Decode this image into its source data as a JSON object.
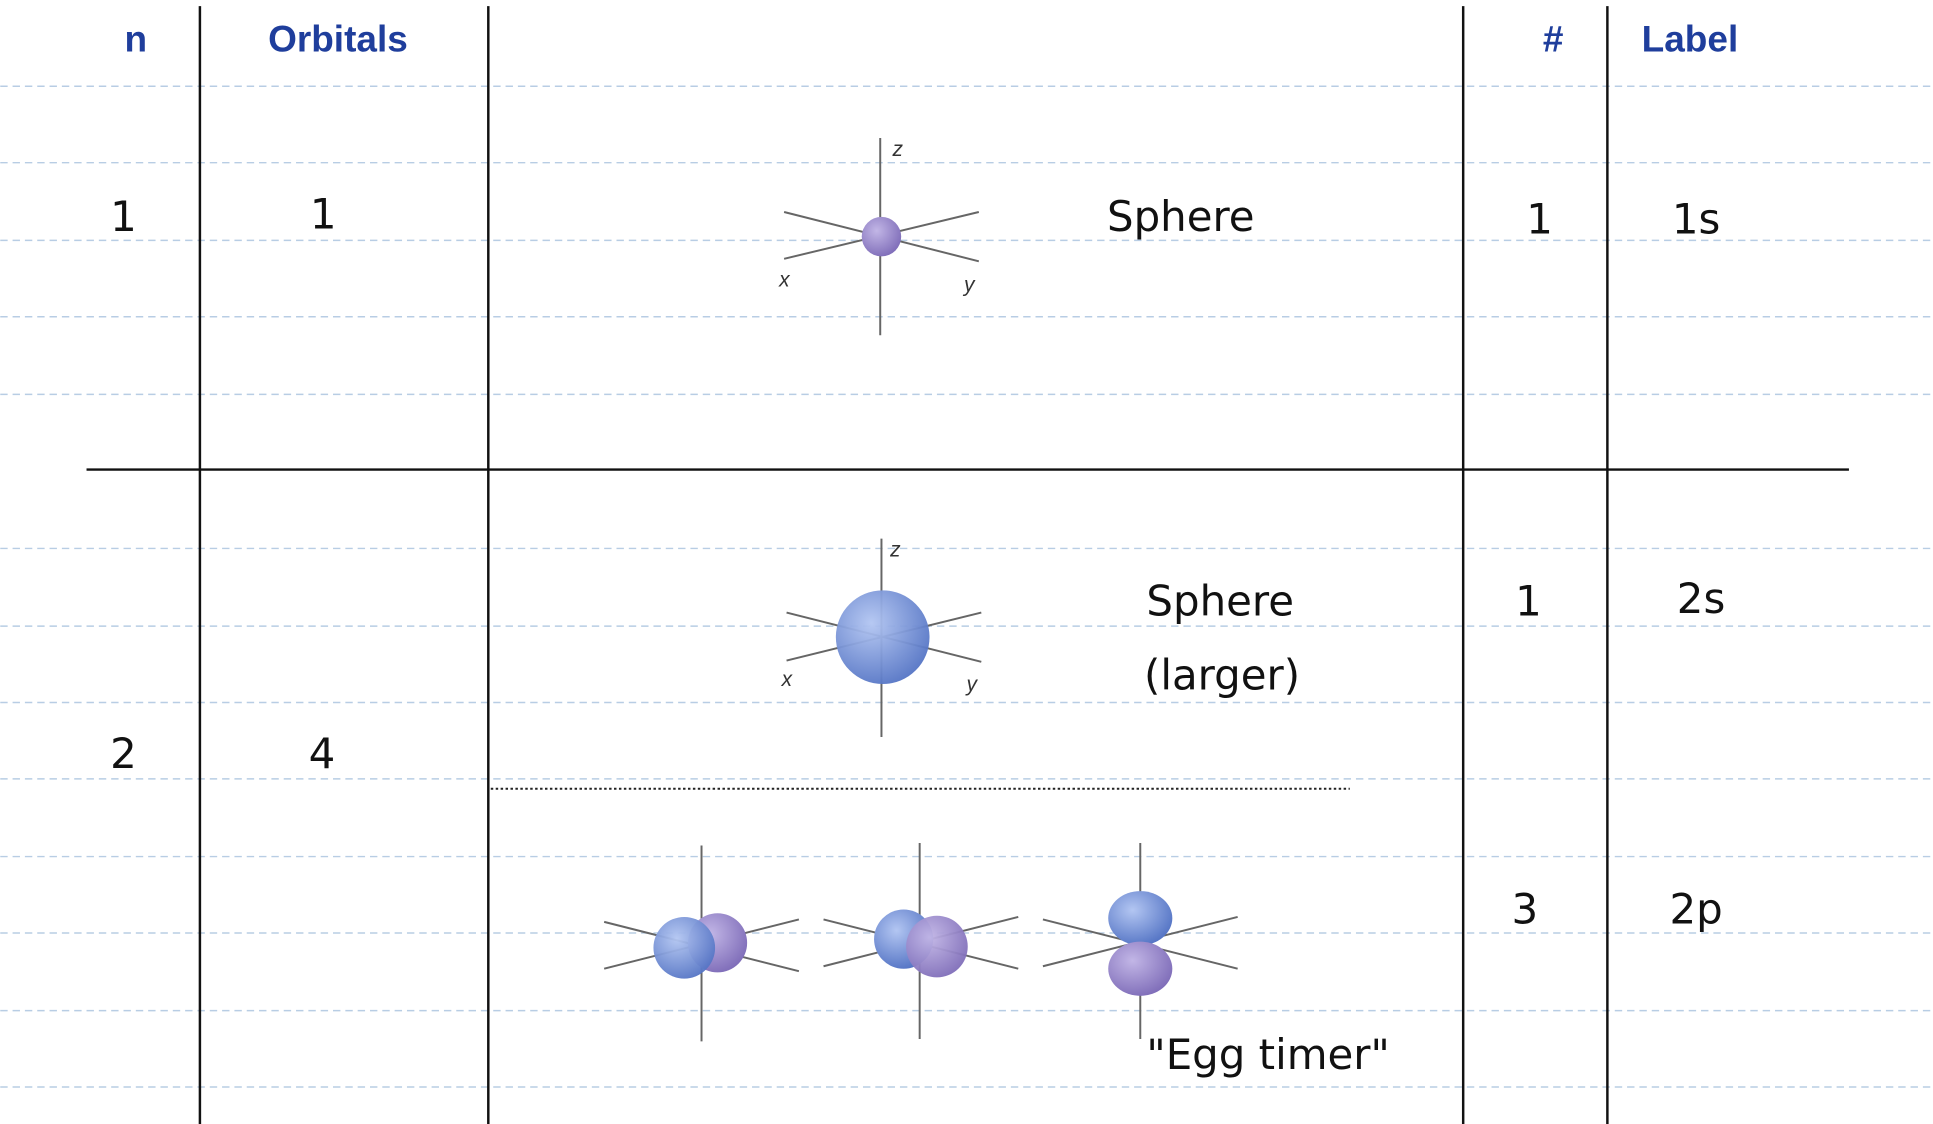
{
  "header": {
    "n": "n",
    "orbitals": "Orbitals",
    "count": "#",
    "label": "Label"
  },
  "rows": [
    {
      "n": "1",
      "orbitals": "1",
      "subshells": [
        {
          "axis_labels": [
            "z",
            "x",
            "y"
          ],
          "shape": [
            "Sphere"
          ],
          "count": "1",
          "label": "1s"
        }
      ]
    },
    {
      "n": "2",
      "orbitals": "4",
      "subshells": [
        {
          "axis_labels": [
            "z",
            "x",
            "y"
          ],
          "shape": [
            "Sphere",
            "(larger)"
          ],
          "count": "1",
          "label": "2s"
        },
        {
          "shape": [
            "\"Egg timer\""
          ],
          "count": "3",
          "label": "2p"
        }
      ]
    }
  ]
}
